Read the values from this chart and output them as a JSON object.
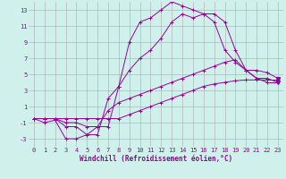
{
  "xlabel": "Windchill (Refroidissement éolien,°C)",
  "background_color": "#cff0eb",
  "line_color": "#990099",
  "grid_color": "#aaaaaa",
  "xlim": [
    -0.5,
    23.5
  ],
  "ylim": [
    -4,
    14
  ],
  "xticks": [
    0,
    1,
    2,
    3,
    4,
    5,
    6,
    7,
    8,
    9,
    10,
    11,
    12,
    13,
    14,
    15,
    16,
    17,
    18,
    19,
    20,
    21,
    22,
    23
  ],
  "yticks": [
    -3,
    -1,
    1,
    3,
    5,
    7,
    9,
    11,
    13
  ],
  "line1_x": [
    0,
    1,
    2,
    3,
    4,
    5,
    6,
    7,
    8,
    9,
    10,
    11,
    12,
    13,
    14,
    15,
    16,
    17,
    18,
    19,
    20,
    21,
    22,
    23
  ],
  "line1_y": [
    -0.5,
    -1.0,
    -0.7,
    -3.0,
    -3.0,
    -2.5,
    -1.5,
    -1.5,
    3.5,
    9.0,
    11.5,
    12.0,
    13.0,
    14.0,
    13.5,
    13.0,
    12.5,
    11.5,
    8.0,
    6.5,
    5.5,
    4.5,
    4.5,
    4.0
  ],
  "line2_x": [
    0,
    1,
    2,
    3,
    4,
    5,
    6,
    7,
    8,
    9,
    10,
    11,
    12,
    13,
    14,
    15,
    16,
    17,
    18,
    19,
    20,
    21,
    22,
    23
  ],
  "line2_y": [
    -0.5,
    -0.5,
    -0.5,
    -1.5,
    -1.5,
    -2.5,
    -2.5,
    2.0,
    3.5,
    5.5,
    7.0,
    8.0,
    9.5,
    11.5,
    12.5,
    12.0,
    12.5,
    12.5,
    11.5,
    8.0,
    5.5,
    5.5,
    5.2,
    4.5
  ],
  "line3_x": [
    0,
    1,
    2,
    3,
    4,
    5,
    6,
    7,
    8,
    9,
    10,
    11,
    12,
    13,
    14,
    15,
    16,
    17,
    18,
    19,
    20,
    21,
    22,
    23
  ],
  "line3_y": [
    -0.5,
    -0.5,
    -0.5,
    -1.0,
    -1.0,
    -1.5,
    -1.5,
    0.5,
    1.5,
    2.0,
    2.5,
    3.0,
    3.5,
    4.0,
    4.5,
    5.0,
    5.5,
    6.0,
    6.5,
    6.8,
    5.5,
    4.5,
    4.0,
    4.0
  ],
  "line4_x": [
    0,
    1,
    2,
    3,
    4,
    5,
    6,
    7,
    8,
    9,
    10,
    11,
    12,
    13,
    14,
    15,
    16,
    17,
    18,
    19,
    20,
    21,
    22,
    23
  ],
  "line4_y": [
    -0.5,
    -0.5,
    -0.5,
    -0.5,
    -0.5,
    -0.5,
    -0.5,
    -0.5,
    -0.5,
    0.0,
    0.5,
    1.0,
    1.5,
    2.0,
    2.5,
    3.0,
    3.5,
    3.8,
    4.0,
    4.2,
    4.3,
    4.3,
    4.3,
    4.3
  ],
  "marker_size": 3,
  "linewidth": 0.7,
  "tick_fontsize": 5,
  "xlabel_fontsize": 5.5
}
